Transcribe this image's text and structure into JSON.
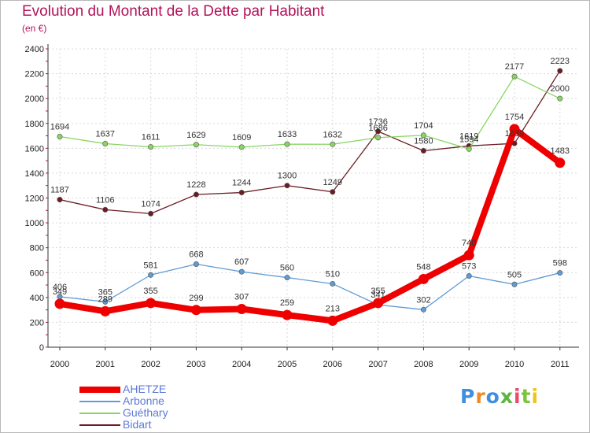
{
  "title": "Evolution du Montant de la Dette par Habitant",
  "unit": "(en €)",
  "logo_text": "Proxiti",
  "logo_colors": [
    "#3f8fe0",
    "#f08b23",
    "#3f8fe0",
    "#5bb540",
    "#e94b6b",
    "#7ec43a",
    "#f0c419"
  ],
  "chart_data": {
    "type": "line",
    "x": [
      "2000",
      "2001",
      "2002",
      "2003",
      "2004",
      "2005",
      "2006",
      "2007",
      "2008",
      "2009",
      "2010",
      "2011"
    ],
    "ylim": [
      0,
      2400
    ],
    "yticks": [
      0,
      200,
      400,
      600,
      800,
      1000,
      1200,
      1400,
      1600,
      1800,
      2000,
      2200,
      2400
    ],
    "grid": true,
    "legend_position": "bottom-left",
    "series": [
      {
        "name": "Bidart",
        "color": "#6b1c24",
        "width": 1.3,
        "values": [
          1187,
          1106,
          1074,
          1228,
          1244,
          1300,
          1249,
          1736,
          1580,
          1619,
          1639,
          2223
        ],
        "labels": [
          "1187",
          "1106",
          "1074",
          "1228",
          "1244",
          "1300",
          "1249",
          "1736",
          "1580",
          "1619",
          "1639",
          "2223"
        ]
      },
      {
        "name": "Guéthary",
        "color": "#88d660",
        "width": 1.3,
        "values": [
          1694,
          1637,
          1611,
          1629,
          1609,
          1633,
          1632,
          1686,
          1704,
          1594,
          2177,
          2000
        ],
        "labels": [
          "1694",
          "1637",
          "1611",
          "1629",
          "1609",
          "1633",
          "1632",
          "1686",
          "1704",
          "1594",
          "2177",
          "2000"
        ]
      },
      {
        "name": "Arbonne",
        "color": "#5f9bd4",
        "width": 1.3,
        "values": [
          406,
          365,
          581,
          668,
          607,
          560,
          510,
          341,
          302,
          573,
          505,
          598
        ],
        "labels": [
          "406",
          "365",
          "581",
          "668",
          "607",
          "560",
          "510",
          "341",
          "302",
          "573",
          "505",
          "598"
        ]
      },
      {
        "name": "AHETZE",
        "color": "#ee0000",
        "width": 8,
        "values": [
          349,
          289,
          355,
          299,
          307,
          259,
          213,
          355,
          548,
          740,
          1754,
          1483
        ],
        "labels": [
          "349",
          "289",
          "355",
          "299",
          "307",
          "259",
          "213",
          "355",
          "548",
          "740",
          "1754",
          "1483"
        ]
      }
    ],
    "legend_order": [
      "AHETZE",
      "Arbonne",
      "Guéthary",
      "Bidart"
    ]
  }
}
